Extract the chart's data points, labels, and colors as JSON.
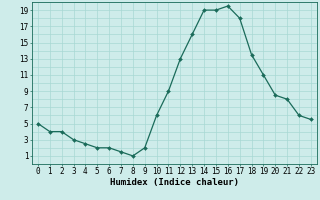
{
  "x": [
    0,
    1,
    2,
    3,
    4,
    5,
    6,
    7,
    8,
    9,
    10,
    11,
    12,
    13,
    14,
    15,
    16,
    17,
    18,
    19,
    20,
    21,
    22,
    23
  ],
  "y": [
    5,
    4,
    4,
    3,
    2.5,
    2,
    2,
    1.5,
    1,
    2,
    6,
    9,
    13,
    16,
    19,
    19,
    19.5,
    18,
    13.5,
    11,
    8.5,
    8,
    6,
    5.5
  ],
  "line_color": "#1a6b5a",
  "marker": "D",
  "marker_size": 2.0,
  "bg_color": "#ceecea",
  "grid_color": "#a8d8d4",
  "xlabel": "Humidex (Indice chaleur)",
  "xlim": [
    -0.5,
    23.5
  ],
  "ylim": [
    0,
    20
  ],
  "xticks": [
    0,
    1,
    2,
    3,
    4,
    5,
    6,
    7,
    8,
    9,
    10,
    11,
    12,
    13,
    14,
    15,
    16,
    17,
    18,
    19,
    20,
    21,
    22,
    23
  ],
  "yticks": [
    1,
    3,
    5,
    7,
    9,
    11,
    13,
    15,
    17,
    19
  ],
  "tick_fontsize": 5.5,
  "label_fontsize": 6.5
}
